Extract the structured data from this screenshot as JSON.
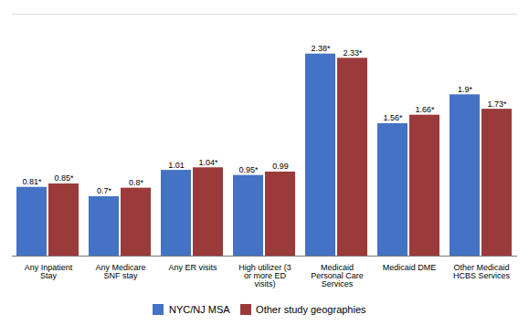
{
  "chart_data": {
    "type": "bar",
    "categories": [
      "Any Inpatient\nStay",
      "Any Medicare\nSNF stay",
      "Any ER visits",
      "High utilizer (3\nor more ED\nvisits)",
      "Medicaid\nPersonal Care\nServices",
      "Medicaid DME",
      "Other Medicaid\nHCBS Services"
    ],
    "series": [
      {
        "name": "NYC/NJ MSA",
        "color": "#4472C4",
        "values": [
          0.81,
          0.7,
          1.01,
          0.95,
          2.38,
          1.56,
          1.9
        ],
        "value_labels": [
          "0.81*",
          "0.7*",
          "1.01",
          "0.95*",
          "2.38*",
          "1.56*",
          "1.9*"
        ]
      },
      {
        "name": "Other study geographies",
        "color": "#9B3A3A",
        "values": [
          0.85,
          0.8,
          1.04,
          0.99,
          2.33,
          1.66,
          1.73
        ],
        "value_labels": [
          "0.85*",
          "0.8*",
          "1.04*",
          "0.99",
          "2.33*",
          "1.66*",
          "1.73*"
        ]
      }
    ],
    "ylim": [
      0,
      2.85
    ],
    "tick_labels": "x",
    "data_labels": true,
    "grid": false,
    "legend": "bottom"
  }
}
